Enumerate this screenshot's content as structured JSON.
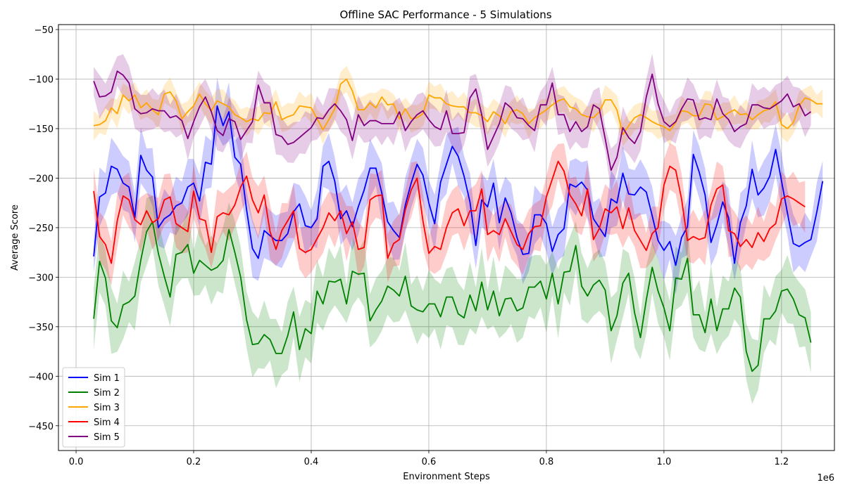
{
  "chart_data": {
    "type": "line",
    "title": "Offline SAC Performance - 5 Simulations",
    "xlabel": "Environment Steps",
    "ylabel": "Average Score",
    "x_offset_text": "1e6",
    "xlim": [
      -30000,
      1290000
    ],
    "ylim": [
      -475,
      -45
    ],
    "xticks": [
      0,
      200000,
      400000,
      600000,
      800000,
      1000000,
      1200000
    ],
    "xtick_labels": [
      "0.0",
      "0.2",
      "0.4",
      "0.6",
      "0.8",
      "1.0",
      "1.2"
    ],
    "yticks": [
      -50,
      -100,
      -150,
      -200,
      -250,
      -300,
      -350,
      -400,
      -450
    ],
    "ytick_labels": [
      "−50",
      "−100",
      "−150",
      "−200",
      "−250",
      "−300",
      "−350",
      "−400",
      "−450"
    ],
    "grid": true,
    "legend_position": "lower-left",
    "x_start": 30000,
    "x_step": 10000,
    "series": [
      {
        "name": "Sim 1",
        "color": "#0000ff",
        "band": 30,
        "values": [
          -279,
          -219,
          -215,
          -188,
          -191,
          -205,
          -209,
          -240,
          -177,
          -192,
          -199,
          -250,
          -241,
          -237,
          -228,
          -225,
          -209,
          -205,
          -223,
          -184,
          -186,
          -127,
          -147,
          -133,
          -179,
          -186,
          -232,
          -271,
          -281,
          -253,
          -258,
          -263,
          -263,
          -256,
          -234,
          -226,
          -248,
          -250,
          -241,
          -188,
          -183,
          -203,
          -241,
          -233,
          -249,
          -229,
          -212,
          -190,
          -190,
          -215,
          -244,
          -253,
          -260,
          -227,
          -205,
          -186,
          -197,
          -225,
          -246,
          -204,
          -186,
          -168,
          -178,
          -198,
          -224,
          -268,
          -222,
          -229,
          -205,
          -245,
          -220,
          -235,
          -260,
          -277,
          -276,
          -237,
          -237,
          -246,
          -274,
          -257,
          -251,
          -206,
          -209,
          -204,
          -212,
          -241,
          -250,
          -259,
          -221,
          -225,
          -195,
          -216,
          -217,
          -209,
          -214,
          -238,
          -263,
          -273,
          -264,
          -288,
          -260,
          -249,
          -176,
          -194,
          -217,
          -265,
          -247,
          -224,
          -240,
          -286,
          -245,
          -228,
          -191,
          -217,
          -210,
          -198,
          -171,
          -203,
          -235,
          -266,
          -269,
          -265,
          -262,
          -234,
          -203
        ]
      },
      {
        "name": "Sim 2",
        "color": "#008000",
        "band": 35,
        "values": [
          -342,
          -284,
          -301,
          -344,
          -351,
          -328,
          -325,
          -319,
          -283,
          -254,
          -244,
          -276,
          -299,
          -320,
          -277,
          -275,
          -267,
          -296,
          -283,
          -288,
          -293,
          -290,
          -283,
          -252,
          -275,
          -300,
          -343,
          -368,
          -367,
          -358,
          -363,
          -377,
          -377,
          -359,
          -335,
          -373,
          -352,
          -357,
          -314,
          -327,
          -304,
          -305,
          -302,
          -327,
          -294,
          -297,
          -296,
          -344,
          -333,
          -324,
          -309,
          -313,
          -319,
          -299,
          -329,
          -333,
          -335,
          -327,
          -327,
          -340,
          -320,
          -320,
          -337,
          -341,
          -318,
          -334,
          -305,
          -333,
          -314,
          -339,
          -322,
          -321,
          -334,
          -331,
          -310,
          -310,
          -304,
          -322,
          -296,
          -327,
          -295,
          -294,
          -268,
          -309,
          -319,
          -308,
          -303,
          -313,
          -354,
          -339,
          -306,
          -296,
          -336,
          -361,
          -323,
          -290,
          -314,
          -331,
          -354,
          -301,
          -302,
          -281,
          -338,
          -338,
          -356,
          -322,
          -354,
          -332,
          -332,
          -311,
          -320,
          -375,
          -395,
          -389,
          -342,
          -342,
          -334,
          -314,
          -312,
          -322,
          -338,
          -341,
          -366
        ]
      },
      {
        "name": "Sim 3",
        "color": "#ffa500",
        "band": 15,
        "values": [
          -147,
          -146,
          -142,
          -129,
          -135,
          -116,
          -122,
          -116,
          -129,
          -124,
          -131,
          -136,
          -115,
          -113,
          -122,
          -140,
          -133,
          -127,
          -115,
          -125,
          -132,
          -122,
          -125,
          -128,
          -136,
          -139,
          -143,
          -140,
          -142,
          -134,
          -135,
          -123,
          -141,
          -138,
          -136,
          -127,
          -128,
          -129,
          -140,
          -151,
          -141,
          -130,
          -105,
          -100,
          -112,
          -131,
          -131,
          -124,
          -129,
          -118,
          -126,
          -125,
          -140,
          -130,
          -140,
          -139,
          -135,
          -116,
          -119,
          -119,
          -125,
          -127,
          -128,
          -128,
          -134,
          -134,
          -137,
          -143,
          -133,
          -137,
          -145,
          -133,
          -131,
          -135,
          -145,
          -139,
          -135,
          -131,
          -126,
          -122,
          -120,
          -128,
          -130,
          -136,
          -138,
          -139,
          -133,
          -121,
          -121,
          -131,
          -156,
          -147,
          -139,
          -136,
          -139,
          -143,
          -146,
          -148,
          -152,
          -144,
          -132,
          -133,
          -137,
          -137,
          -125,
          -126,
          -141,
          -138,
          -134,
          -131,
          -136,
          -135,
          -141,
          -136,
          -132,
          -130,
          -123,
          -146,
          -150,
          -144,
          -127,
          -119,
          -121,
          -125,
          -125
        ]
      },
      {
        "name": "Sim 4",
        "color": "#ff0000",
        "band": 28,
        "values": [
          -213,
          -259,
          -267,
          -286,
          -243,
          -218,
          -222,
          -242,
          -247,
          -233,
          -245,
          -241,
          -222,
          -219,
          -246,
          -250,
          -254,
          -213,
          -241,
          -243,
          -275,
          -239,
          -235,
          -237,
          -227,
          -209,
          -198,
          -222,
          -235,
          -217,
          -254,
          -272,
          -253,
          -243,
          -233,
          -271,
          -275,
          -272,
          -261,
          -250,
          -235,
          -243,
          -233,
          -256,
          -244,
          -272,
          -270,
          -222,
          -218,
          -217,
          -281,
          -266,
          -262,
          -232,
          -212,
          -200,
          -243,
          -276,
          -269,
          -272,
          -250,
          -235,
          -231,
          -248,
          -233,
          -233,
          -211,
          -257,
          -253,
          -257,
          -241,
          -254,
          -267,
          -272,
          -256,
          -249,
          -248,
          -219,
          -201,
          -183,
          -193,
          -217,
          -226,
          -238,
          -211,
          -262,
          -251,
          -231,
          -235,
          -229,
          -251,
          -230,
          -253,
          -263,
          -273,
          -256,
          -250,
          -207,
          -188,
          -192,
          -221,
          -263,
          -259,
          -262,
          -260,
          -227,
          -211,
          -207,
          -253,
          -256,
          -269,
          -262,
          -270,
          -255,
          -264,
          -251,
          -246,
          -221,
          -218,
          -221,
          -225,
          -229
        ]
      },
      {
        "name": "Sim 5",
        "color": "#800080",
        "band": 22,
        "values": [
          -102,
          -118,
          -117,
          -113,
          -92,
          -96,
          -104,
          -130,
          -135,
          -134,
          -130,
          -132,
          -132,
          -139,
          -137,
          -142,
          -160,
          -143,
          -128,
          -118,
          -133,
          -152,
          -157,
          -140,
          -143,
          -161,
          -152,
          -143,
          -106,
          -124,
          -124,
          -156,
          -158,
          -166,
          -164,
          -159,
          -154,
          -149,
          -139,
          -140,
          -131,
          -125,
          -132,
          -141,
          -162,
          -136,
          -147,
          -142,
          -142,
          -145,
          -145,
          -145,
          -133,
          -152,
          -143,
          -136,
          -132,
          -141,
          -148,
          -151,
          -132,
          -155,
          -155,
          -154,
          -119,
          -110,
          -136,
          -171,
          -158,
          -145,
          -124,
          -129,
          -139,
          -140,
          -147,
          -152,
          -126,
          -126,
          -104,
          -136,
          -136,
          -153,
          -143,
          -153,
          -148,
          -126,
          -130,
          -160,
          -192,
          -179,
          -149,
          -159,
          -165,
          -153,
          -118,
          -95,
          -125,
          -143,
          -148,
          -143,
          -130,
          -120,
          -121,
          -141,
          -139,
          -141,
          -120,
          -135,
          -141,
          -153,
          -148,
          -145,
          -126,
          -126,
          -129,
          -130,
          -126,
          -122,
          -115,
          -128,
          -125,
          -137,
          -133
        ]
      }
    ]
  }
}
